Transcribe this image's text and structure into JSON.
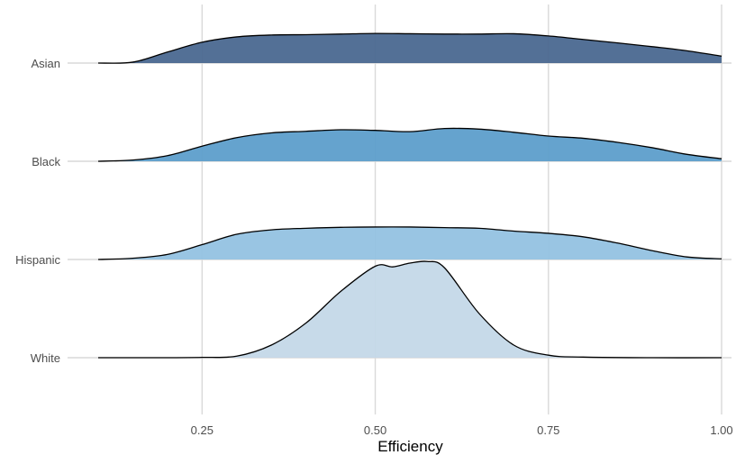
{
  "chart_data": {
    "type": "ridgeline",
    "title": "",
    "xlabel": "Efficiency",
    "ylabel": "",
    "xlim": [
      0.1,
      1.0
    ],
    "x_ticks": [
      0.25,
      0.5,
      0.75,
      1.0
    ],
    "x_tick_labels": [
      "0.25",
      "0.50",
      "0.75",
      "1.00"
    ],
    "grid": true,
    "legend": "none",
    "categories": [
      "Asian",
      "Black",
      "Hispanic",
      "White"
    ],
    "series": [
      {
        "name": "Asian",
        "color": "#4A6890",
        "x": [
          0.1,
          0.15,
          0.2,
          0.25,
          0.3,
          0.35,
          0.4,
          0.45,
          0.5,
          0.55,
          0.6,
          0.65,
          0.7,
          0.75,
          0.8,
          0.85,
          0.9,
          0.95,
          1.0
        ],
        "density": [
          0.0,
          0.03,
          0.35,
          0.66,
          0.83,
          0.89,
          0.9,
          0.92,
          0.94,
          0.93,
          0.92,
          0.92,
          0.93,
          0.86,
          0.75,
          0.64,
          0.52,
          0.39,
          0.22
        ]
      },
      {
        "name": "Black",
        "color": "#5D9ECB",
        "x": [
          0.1,
          0.15,
          0.2,
          0.25,
          0.3,
          0.35,
          0.4,
          0.45,
          0.5,
          0.55,
          0.6,
          0.65,
          0.7,
          0.75,
          0.8,
          0.85,
          0.9,
          0.95,
          1.0
        ],
        "density": [
          0.0,
          0.04,
          0.18,
          0.48,
          0.75,
          0.9,
          0.95,
          1.0,
          0.98,
          0.94,
          1.04,
          1.02,
          0.92,
          0.8,
          0.73,
          0.6,
          0.43,
          0.22,
          0.08
        ]
      },
      {
        "name": "Hispanic",
        "color": "#93C2E2",
        "x": [
          0.1,
          0.15,
          0.2,
          0.25,
          0.3,
          0.35,
          0.4,
          0.45,
          0.5,
          0.55,
          0.6,
          0.65,
          0.7,
          0.75,
          0.8,
          0.85,
          0.9,
          0.95,
          1.0
        ],
        "density": [
          0.0,
          0.04,
          0.16,
          0.47,
          0.8,
          0.94,
          0.99,
          1.02,
          1.03,
          1.03,
          1.01,
          0.99,
          0.9,
          0.83,
          0.72,
          0.52,
          0.28,
          0.08,
          0.02
        ]
      },
      {
        "name": "White",
        "color": "#C4D8E8",
        "x": [
          0.1,
          0.2,
          0.25,
          0.3,
          0.35,
          0.4,
          0.45,
          0.5,
          0.525,
          0.55,
          0.575,
          0.6,
          0.65,
          0.7,
          0.75,
          0.8,
          0.9,
          1.0
        ],
        "density": [
          0.0,
          0.0,
          0.01,
          0.05,
          0.4,
          1.1,
          2.1,
          2.9,
          2.88,
          3.0,
          3.05,
          2.85,
          1.4,
          0.4,
          0.08,
          0.02,
          0.0,
          0.0
        ]
      }
    ]
  }
}
